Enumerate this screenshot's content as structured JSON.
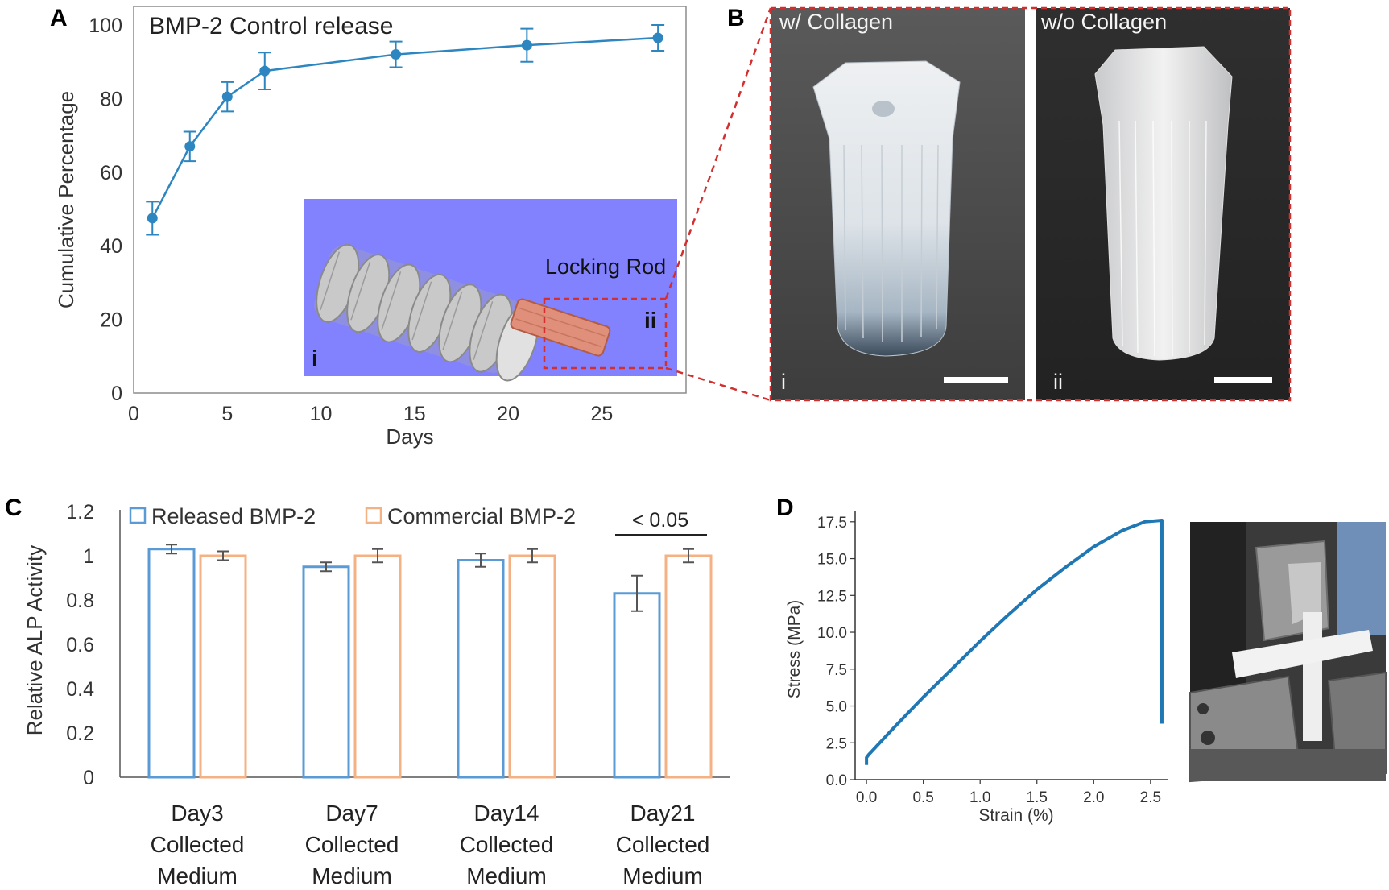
{
  "panels": {
    "A": "A",
    "B": "B",
    "C": "C",
    "D": "D"
  },
  "chart_a": {
    "type": "line",
    "title": "BMP-2 Control release",
    "xlabel": "Days",
    "ylabel": "Cumulative Percentage",
    "xlim": [
      0,
      29.5
    ],
    "ylim": [
      0,
      100
    ],
    "xticks": [
      "0",
      "5",
      "10",
      "15",
      "20",
      "25"
    ],
    "yticks": [
      "0",
      "20",
      "40",
      "60",
      "80",
      "100"
    ],
    "color": "#2e86c1",
    "inset": {
      "label": "Locking Rod",
      "roman_i": "i",
      "roman_ii": "ii",
      "background": "#8282ff"
    }
  },
  "photos_b": {
    "left_label": "w/  Collagen",
    "right_label": "w/o Collagen",
    "left_roman": "i",
    "right_roman": "ii"
  },
  "chart_c": {
    "type": "bar",
    "ylabel": "Relative ALP Activity",
    "yticks": [
      "0",
      "0.2",
      "0.4",
      "0.6",
      "0.8",
      "1",
      "1.2"
    ],
    "ylim": [
      0,
      1.2
    ],
    "legend": [
      "Released BMP-2",
      "Commercial BMP-2"
    ],
    "significance": "< 0.05",
    "colors": [
      "#5b9bd5",
      "#f4b183"
    ]
  },
  "chart_d": {
    "type": "line",
    "xlabel": "Strain (%)",
    "ylabel": "Stress (MPa)",
    "xticks": [
      "0.0",
      "0.5",
      "1.0",
      "1.5",
      "2.0",
      "2.5"
    ],
    "yticks": [
      "0.0",
      "2.5",
      "5.0",
      "7.5",
      "10.0",
      "12.5",
      "15.0",
      "17.5"
    ],
    "xlim": [
      -0.1,
      2.65
    ],
    "ylim": [
      0,
      18.2
    ],
    "color": "#1f77b4"
  },
  "chart_data": [
    {
      "type": "line",
      "title": "BMP-2 Control release",
      "xlabel": "Days",
      "ylabel": "Cumulative Percentage",
      "x": [
        1,
        3,
        5,
        7,
        14,
        21,
        28
      ],
      "y": [
        47.5,
        67,
        80.5,
        87.5,
        92,
        94.5,
        96.5
      ],
      "error": [
        4.5,
        4,
        4,
        5,
        3.5,
        4.5,
        3.5
      ],
      "xlim": [
        0,
        29.5
      ],
      "ylim": [
        0,
        100
      ]
    },
    {
      "type": "bar",
      "ylabel": "Relative ALP Activity",
      "categories": [
        [
          "Day3",
          "Collected",
          "Medium"
        ],
        [
          "Day7",
          "Collected",
          "Medium"
        ],
        [
          "Day14",
          "Collected",
          "Medium"
        ],
        [
          "Day21",
          "Collected",
          "Medium"
        ]
      ],
      "series": [
        {
          "name": "Released BMP-2",
          "values": [
            1.03,
            0.95,
            0.98,
            0.83
          ],
          "error": [
            0.02,
            0.02,
            0.03,
            0.08
          ]
        },
        {
          "name": "Commercial BMP-2",
          "values": [
            1.0,
            1.0,
            1.0,
            1.0
          ],
          "error": [
            0.02,
            0.03,
            0.03,
            0.03
          ]
        }
      ],
      "ylim": [
        0,
        1.2
      ],
      "annotation": "< 0.05"
    },
    {
      "type": "line",
      "xlabel": "Strain (%)",
      "ylabel": "Stress (MPa)",
      "x": [
        0.0,
        0.0,
        0.02,
        0.25,
        0.5,
        0.75,
        1.0,
        1.25,
        1.5,
        1.75,
        2.0,
        2.25,
        2.45,
        2.6,
        2.6
      ],
      "y": [
        1.0,
        1.5,
        1.7,
        3.6,
        5.6,
        7.5,
        9.4,
        11.2,
        12.9,
        14.4,
        15.8,
        16.9,
        17.5,
        17.6,
        3.8
      ],
      "xlim": [
        -0.1,
        2.65
      ],
      "ylim": [
        0,
        18.2
      ]
    }
  ]
}
